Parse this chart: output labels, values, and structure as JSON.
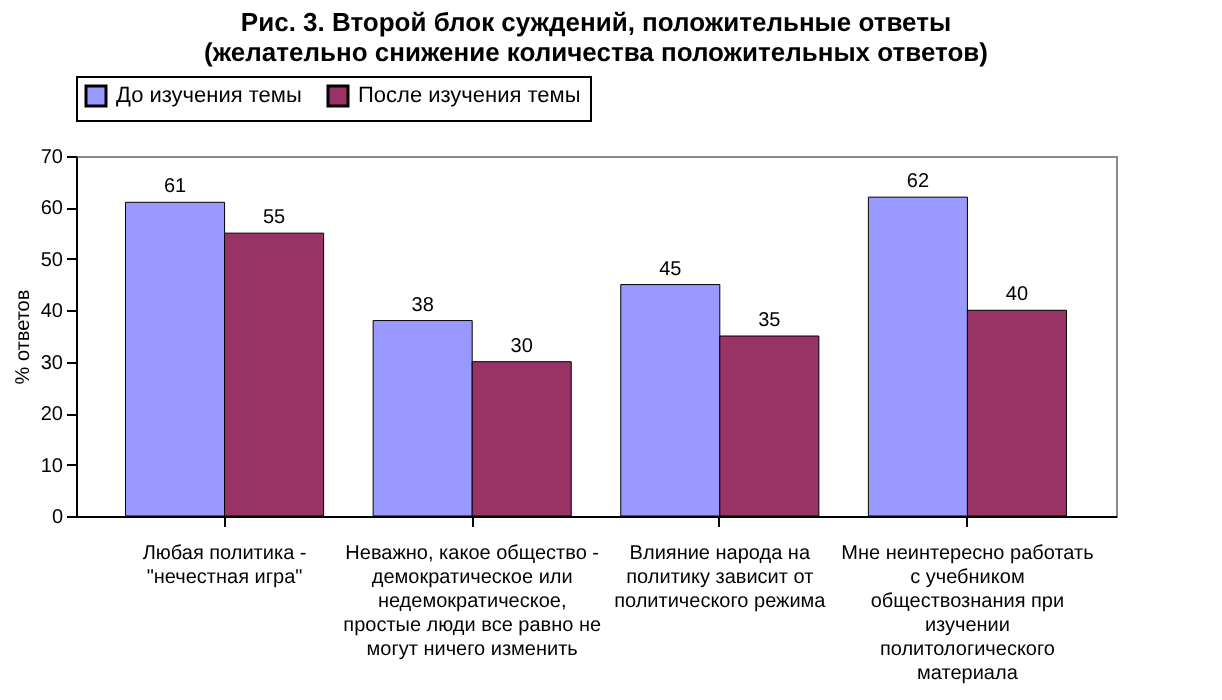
{
  "chart_data": {
    "type": "bar",
    "title": "Рис. 3. Второй блок суждений, положительные ответы\n(желательно снижение количества положительных ответов)",
    "ylabel": "% ответов",
    "categories": [
      "Любая политика - \"нечестная игра\"",
      "Неважно, какое общество - демократическое или недемократическое, простые люди все равно не могут ничего изменить",
      "Влияние народа на политику зависит от политического режима",
      "Мне неинтересно работать с учебником обществознания при изучении политологического материала"
    ],
    "series": [
      {
        "name": "До изучения темы",
        "color": "#9999ff",
        "values": [
          61,
          38,
          45,
          62
        ]
      },
      {
        "name": "После изучения темы",
        "color": "#993366",
        "values": [
          55,
          30,
          35,
          40
        ]
      }
    ],
    "ylim": [
      0,
      70
    ],
    "yticks": [
      0,
      10,
      20,
      30,
      40,
      50,
      60,
      70
    ],
    "grid": false,
    "legend": "top",
    "data_labels": true
  }
}
